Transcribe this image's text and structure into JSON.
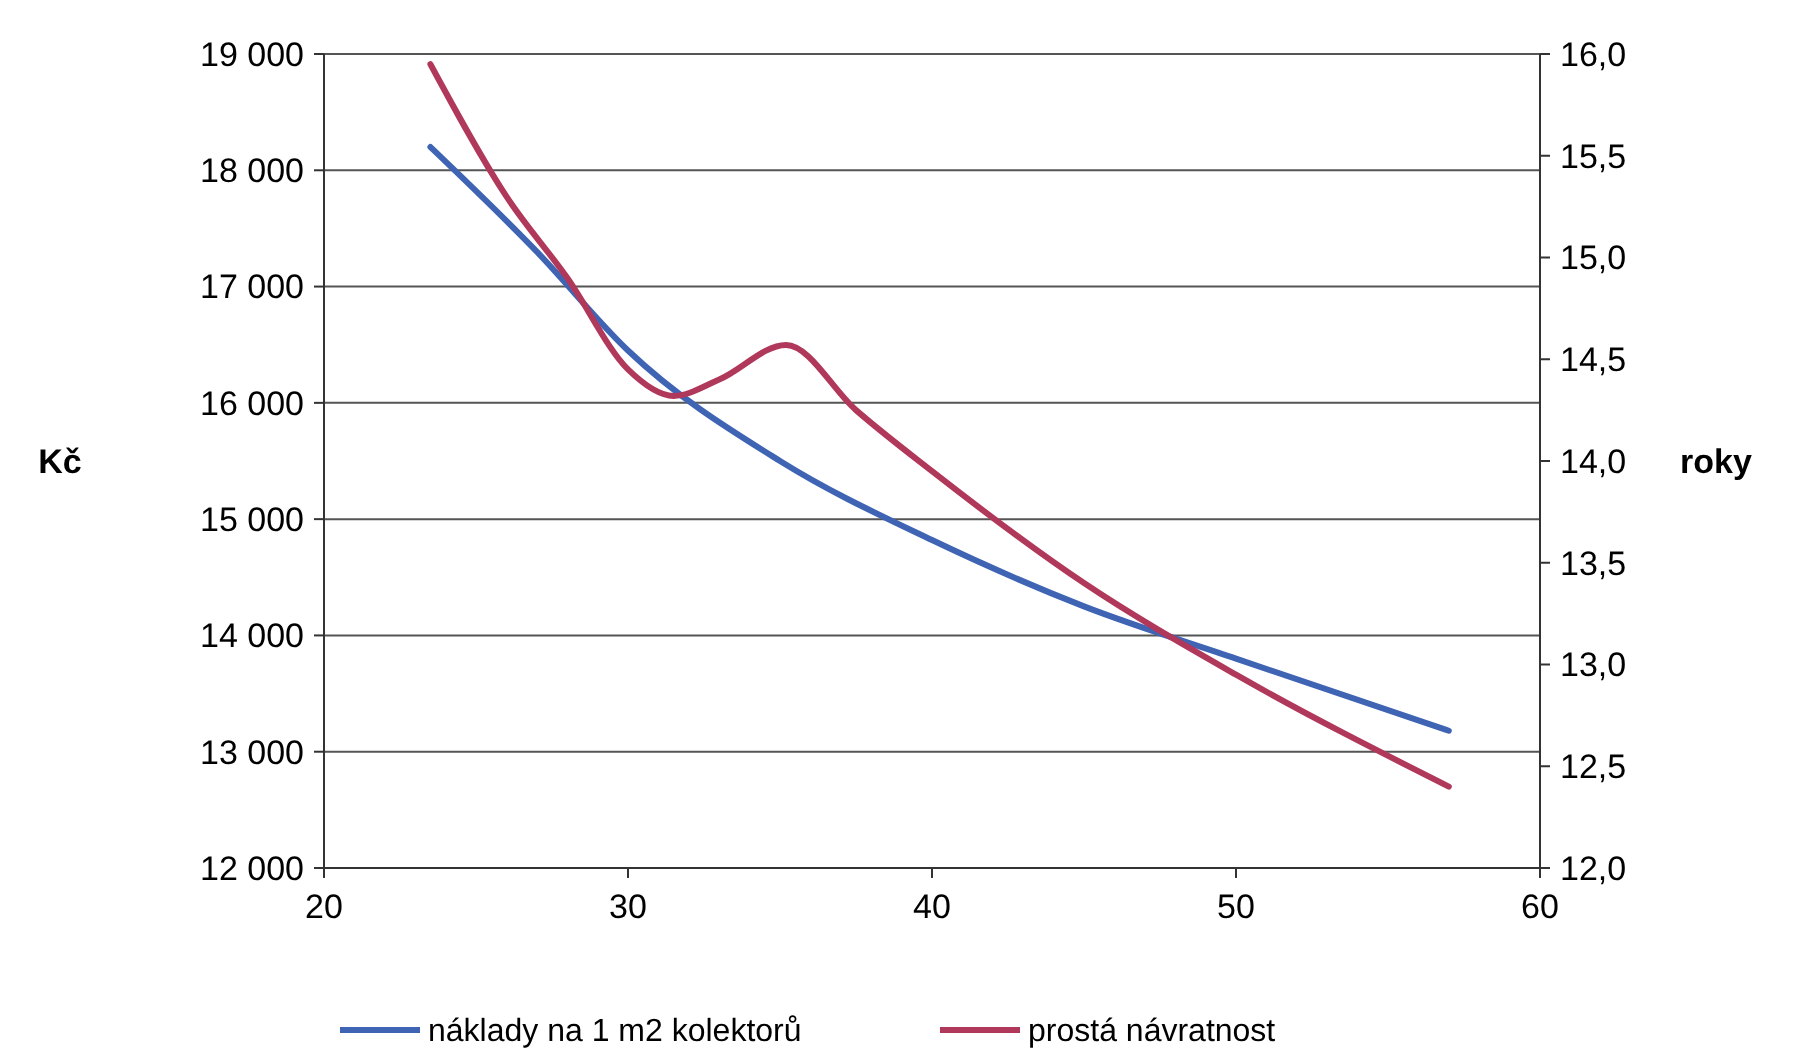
{
  "chart_data": {
    "type": "line",
    "ylabel": "Kč",
    "y2label": "roky",
    "xlim": [
      20,
      60
    ],
    "xticks": [
      20,
      30,
      40,
      50,
      60
    ],
    "ylim": [
      12000,
      19000
    ],
    "yticks": [
      {
        "value": 12000,
        "label": "12 000"
      },
      {
        "value": 13000,
        "label": "13 000"
      },
      {
        "value": 14000,
        "label": "14 000"
      },
      {
        "value": 15000,
        "label": "15 000"
      },
      {
        "value": 16000,
        "label": "16 000"
      },
      {
        "value": 17000,
        "label": "17 000"
      },
      {
        "value": 18000,
        "label": "18 000"
      },
      {
        "value": 19000,
        "label": "19 000"
      }
    ],
    "y2lim": [
      12,
      16
    ],
    "y2ticks": [
      {
        "value": 12,
        "label": "12,0"
      },
      {
        "value": 12.5,
        "label": "12,5"
      },
      {
        "value": 13,
        "label": "13,0"
      },
      {
        "value": 13.5,
        "label": "13,5"
      },
      {
        "value": 14,
        "label": "14,0"
      },
      {
        "value": 14.5,
        "label": "14,5"
      },
      {
        "value": 15,
        "label": "15,0"
      },
      {
        "value": 15.5,
        "label": "15,5"
      },
      {
        "value": 16,
        "label": "16,0"
      }
    ],
    "grid": "y",
    "legend": "bottom",
    "marker": "none",
    "line_style": "solid",
    "series": [
      {
        "name": "náklady na 1 m2 kolektorů",
        "color": "#3f64b4",
        "x": [
          23.5,
          27,
          30,
          35,
          40,
          45,
          50,
          57
        ],
        "values": [
          18200,
          17300,
          16450,
          15500,
          14820,
          14250,
          13800,
          13180
        ]
      },
      {
        "name": "prostá návratnost",
        "color": "#b0385a",
        "axis": "y2",
        "x": [
          23.5,
          26,
          28,
          30,
          31.5,
          33,
          35.2,
          37.5,
          40,
          45,
          50,
          57
        ],
        "values": [
          15.95,
          15.3,
          14.9,
          14.45,
          14.32,
          14.4,
          14.57,
          14.25,
          13.95,
          13.4,
          12.95,
          12.4
        ]
      }
    ]
  }
}
